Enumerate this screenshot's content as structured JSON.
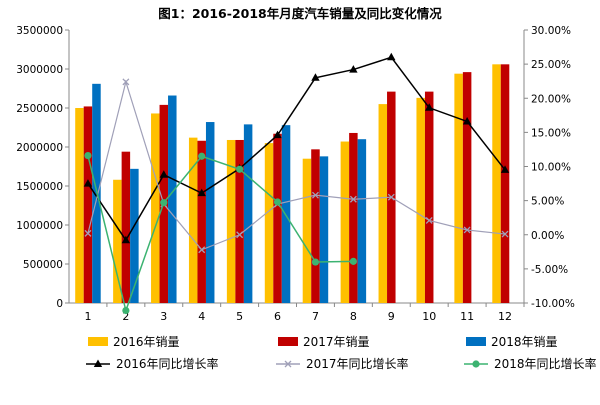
{
  "chart_data": {
    "type": "bar",
    "title": "图1：2016-2018年月度汽车销量及同比变化情况",
    "categories": [
      "1",
      "2",
      "3",
      "4",
      "5",
      "6",
      "7",
      "8",
      "9",
      "10",
      "11",
      "12"
    ],
    "y_left": {
      "range": [
        0,
        3500000
      ],
      "ticks": [
        0,
        500000,
        1000000,
        1500000,
        2000000,
        2500000,
        3000000,
        3500000
      ],
      "tick_labels": [
        "0",
        "500000",
        "1000000",
        "1500000",
        "2000000",
        "2500000",
        "3000000",
        "3500000"
      ]
    },
    "y_right": {
      "range": [
        -10,
        30
      ],
      "ticks": [
        -10,
        -5,
        0,
        5,
        10,
        15,
        20,
        25,
        30
      ],
      "tick_labels": [
        "-10.00%",
        "-5.00%",
        "0.00%",
        "5.00%",
        "10.00%",
        "15.00%",
        "20.00%",
        "25.00%",
        "30.00%"
      ]
    },
    "bar_series": [
      {
        "name": "2016年销量",
        "color": "#FFC000",
        "values": [
          2500000,
          1580000,
          2430000,
          2120000,
          2090000,
          2050000,
          1850000,
          2070000,
          2550000,
          2630000,
          2940000,
          3060000
        ]
      },
      {
        "name": "2017年销量",
        "color": "#C00000",
        "values": [
          2520000,
          1940000,
          2540000,
          2080000,
          2090000,
          2170000,
          1970000,
          2180000,
          2710000,
          2710000,
          2960000,
          3060000
        ]
      },
      {
        "name": "2018年销量",
        "color": "#0070C0",
        "values": [
          2810000,
          1720000,
          2660000,
          2320000,
          2290000,
          2280000,
          1880000,
          2100000,
          null,
          null,
          null,
          null
        ]
      }
    ],
    "line_series": [
      {
        "name": "2016年同比增长率",
        "color": "#000000",
        "marker": "triangle",
        "values": [
          7.5,
          -0.8,
          8.8,
          6.1,
          9.7,
          14.6,
          23.0,
          24.2,
          26.0,
          18.6,
          16.6,
          9.5
        ]
      },
      {
        "name": "2017年同比增长率",
        "color": "#A0A0B8",
        "marker": "x",
        "values": [
          0.2,
          22.4,
          4.5,
          -2.2,
          0.0,
          4.5,
          5.8,
          5.2,
          5.5,
          2.1,
          0.7,
          0.1
        ]
      },
      {
        "name": "2018年同比增长率",
        "color": "#3CB371",
        "marker": "circle",
        "values": [
          11.6,
          -11.1,
          4.7,
          11.5,
          9.6,
          4.8,
          -4.0,
          -3.9,
          null,
          null,
          null,
          null
        ]
      }
    ],
    "legend": {
      "position": "bottom",
      "columns": 3
    }
  }
}
